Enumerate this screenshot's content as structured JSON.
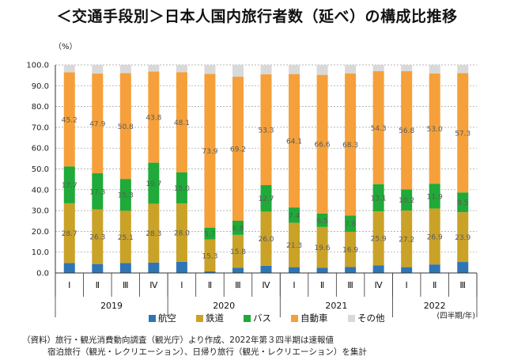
{
  "title": "＜交通手段別＞日本人国内旅行者数（延べ）の構成比推移",
  "chart_data": {
    "type": "bar",
    "stacked": true,
    "y_unit": "（%）",
    "ylim": [
      0,
      100
    ],
    "y_ticks": [
      "0.0",
      "10.0",
      "20.0",
      "30.0",
      "40.0",
      "50.0",
      "60.0",
      "70.0",
      "80.0",
      "90.0",
      "100.0"
    ],
    "grid": "horizontal dashed",
    "legend_position": "bottom",
    "categories": [
      "Ⅰ",
      "Ⅱ",
      "Ⅲ",
      "Ⅳ",
      "Ⅰ",
      "Ⅱ",
      "Ⅲ",
      "Ⅳ",
      "Ⅰ",
      "Ⅱ",
      "Ⅲ",
      "Ⅳ",
      "Ⅰ",
      "Ⅱ",
      "Ⅲ"
    ],
    "groups": [
      {
        "label": "2019",
        "count": 4
      },
      {
        "label": "2020",
        "count": 4
      },
      {
        "label": "2021",
        "count": 4
      },
      {
        "label": "2022",
        "count": 3
      }
    ],
    "x_unit_note": "(四半期/年)",
    "series": [
      {
        "name": "航空",
        "color": "#2e75b6",
        "values": [
          4.8,
          4.3,
          4.8,
          5.0,
          5.4,
          0.8,
          2.5,
          3.5,
          2.8,
          2.5,
          2.9,
          3.7,
          2.8,
          4.1,
          5.3
        ]
      },
      {
        "name": "鉄道",
        "color": "#c9a227",
        "values": [
          28.7,
          26.3,
          25.1,
          28.3,
          28.0,
          15.3,
          15.8,
          26.0,
          21.3,
          19.6,
          16.9,
          25.9,
          27.2,
          26.9,
          23.9
        ]
      },
      {
        "name": "バス",
        "color": "#1faa39",
        "values": [
          17.7,
          17.3,
          15.3,
          19.7,
          15.0,
          5.7,
          6.8,
          12.7,
          7.4,
          6.5,
          7.8,
          13.1,
          10.2,
          11.9,
          9.5
        ]
      },
      {
        "name": "自動車",
        "color": "#f5a03a",
        "values": [
          45.2,
          47.9,
          50.8,
          43.8,
          48.1,
          73.9,
          69.2,
          53.3,
          64.1,
          66.6,
          68.3,
          54.3,
          56.8,
          53.0,
          57.3
        ]
      },
      {
        "name": "その他",
        "color": "#d9d9d9",
        "values": [
          3.6,
          4.2,
          4.0,
          3.2,
          3.5,
          4.3,
          5.7,
          4.5,
          4.4,
          4.8,
          4.1,
          3.0,
          3.0,
          4.1,
          4.0
        ]
      }
    ],
    "labeled_series": [
      "鉄道",
      "バス",
      "自動車"
    ]
  },
  "notes": [
    "（資料）旅行・観光消費動向調査（観光庁）より作成、2022年第３四半期は速報値",
    "宿泊旅行（観光・レクリエーション）、日帰り旅行（観光・レクリエーション）を集計"
  ]
}
